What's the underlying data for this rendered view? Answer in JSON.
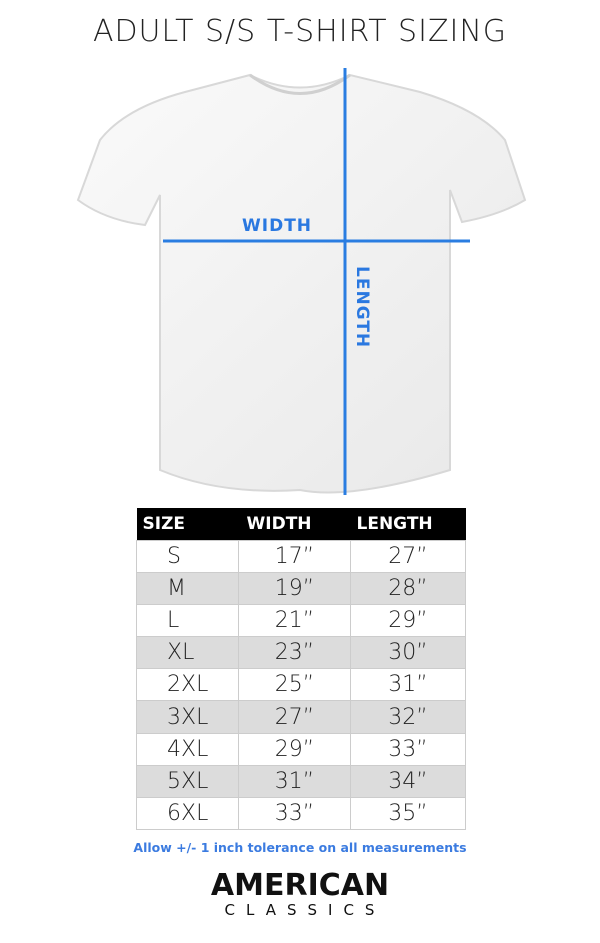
{
  "title": "ADULT S/S T-SHIRT SIZING",
  "diagram": {
    "width_label": "WIDTH",
    "length_label": "LENGTH",
    "line_color": "#2a7de1"
  },
  "table": {
    "headers": [
      "SIZE",
      "WIDTH",
      "LENGTH"
    ],
    "rows": [
      [
        "S",
        "17”",
        "27”"
      ],
      [
        "M",
        "19”",
        "28”"
      ],
      [
        "L",
        "21”",
        "29”"
      ],
      [
        "XL",
        "23”",
        "30”"
      ],
      [
        "2XL",
        "25”",
        "31”"
      ],
      [
        "3XL",
        "27”",
        "32”"
      ],
      [
        "4XL",
        "29”",
        "33”"
      ],
      [
        "5XL",
        "31”",
        "34”"
      ],
      [
        "6XL",
        "33”",
        "35”"
      ]
    ]
  },
  "note": "Allow +/- 1 inch tolerance on all measurements",
  "logo": {
    "line1": "AMERICAN",
    "line2": "CLASSICS"
  }
}
